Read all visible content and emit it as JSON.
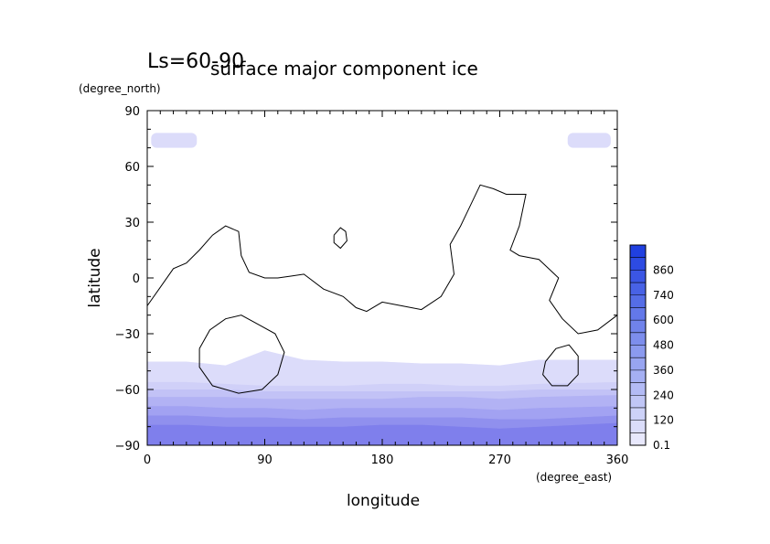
{
  "chart_data": {
    "type": "heatmap",
    "panel_label": "Ls=60-90",
    "title": "surface major component ice",
    "xlabel": "longitude",
    "xunit": "(degree_east)",
    "ylabel": "latitude",
    "yunit": "(degree_north)",
    "xlim": [
      0,
      360
    ],
    "ylim": [
      -90,
      90
    ],
    "xticks": [
      0,
      90,
      180,
      270,
      360
    ],
    "yticks": [
      90,
      60,
      30,
      0,
      -30,
      -60,
      -90
    ],
    "xtick_labels": [
      "0",
      "90",
      "180",
      "270",
      "360"
    ],
    "ytick_labels": [
      "90",
      "60",
      "30",
      "0",
      "−30",
      "−60",
      "−90"
    ],
    "colorbar": {
      "labels": [
        "0.1",
        "120",
        "240",
        "360",
        "480",
        "600",
        "740",
        "860"
      ],
      "levels": [
        0.1,
        60,
        120,
        180,
        240,
        300,
        360,
        420,
        480,
        540,
        600,
        670,
        740,
        800,
        860,
        920,
        980
      ],
      "color_low": "#e8e8fc",
      "color_high": "#2040e0"
    },
    "ice_fill": {
      "south_bands": [
        {
          "level": 0.1,
          "color": "#dcdcfa",
          "boundary_lat": [
            -45,
            -45,
            -47,
            -39,
            -44,
            -45,
            -45,
            -46,
            -46,
            -47,
            -44,
            -44
          ]
        },
        {
          "level": 60,
          "color": "#d0d0f8",
          "boundary_lat": [
            -56,
            -56,
            -57,
            -58,
            -58,
            -58,
            -57,
            -57,
            -58,
            -58,
            -57,
            -56
          ]
        },
        {
          "level": 120,
          "color": "#c2c2f6",
          "boundary_lat": [
            -60,
            -60,
            -60,
            -61,
            -61,
            -61,
            -61,
            -61,
            -61,
            -61,
            -60,
            -60
          ]
        },
        {
          "level": 180,
          "color": "#b2b2f4",
          "boundary_lat": [
            -64,
            -64,
            -64,
            -65,
            -65,
            -65,
            -65,
            -64,
            -64,
            -65,
            -64,
            -63
          ]
        },
        {
          "level": 240,
          "color": "#a2a2f2",
          "boundary_lat": [
            -69,
            -69,
            -70,
            -70,
            -71,
            -70,
            -70,
            -70,
            -70,
            -71,
            -70,
            -69
          ]
        },
        {
          "level": 300,
          "color": "#9090ee",
          "boundary_lat": [
            -74,
            -74,
            -75,
            -75,
            -76,
            -75,
            -75,
            -75,
            -75,
            -76,
            -76,
            -74
          ]
        },
        {
          "level": 360,
          "color": "#7f7fec",
          "boundary_lat": [
            -79,
            -79,
            -80,
            -80,
            -80,
            -80,
            -79,
            -79,
            -80,
            -81,
            -80,
            -78
          ]
        }
      ],
      "band_lons": [
        0,
        30,
        60,
        90,
        120,
        150,
        180,
        210,
        240,
        270,
        300,
        360
      ],
      "north_patches": [
        {
          "level": 0.1,
          "color": "#dcdcfa",
          "lon_range": [
            3,
            38
          ],
          "lat_range": [
            70,
            78
          ]
        },
        {
          "level": 0.1,
          "color": "#dcdcfa",
          "lon_range": [
            322,
            355
          ],
          "lat_range": [
            70,
            78
          ]
        }
      ]
    },
    "contours": [
      {
        "name": "main",
        "points": [
          [
            0,
            -15
          ],
          [
            10,
            -5
          ],
          [
            20,
            5
          ],
          [
            30,
            8
          ],
          [
            40,
            15
          ],
          [
            50,
            23
          ],
          [
            60,
            28
          ],
          [
            70,
            25
          ],
          [
            72,
            12
          ],
          [
            78,
            3
          ],
          [
            90,
            0
          ],
          [
            100,
            0
          ],
          [
            110,
            1
          ],
          [
            120,
            2
          ],
          [
            135,
            -6
          ],
          [
            150,
            -10
          ],
          [
            160,
            -16
          ],
          [
            168,
            -18
          ],
          [
            180,
            -13
          ],
          [
            195,
            -15
          ],
          [
            210,
            -17
          ],
          [
            225,
            -10
          ],
          [
            235,
            2
          ],
          [
            232,
            18
          ],
          [
            240,
            28
          ],
          [
            255,
            50
          ],
          [
            265,
            48
          ],
          [
            275,
            45
          ],
          [
            290,
            45
          ],
          [
            285,
            28
          ],
          [
            278,
            15
          ],
          [
            285,
            12
          ],
          [
            300,
            10
          ],
          [
            315,
            0
          ],
          [
            308,
            -12
          ],
          [
            318,
            -22
          ],
          [
            330,
            -30
          ],
          [
            345,
            -28
          ],
          [
            360,
            -20
          ]
        ]
      },
      {
        "name": "small-north",
        "points": [
          [
            143,
            23
          ],
          [
            148,
            27
          ],
          [
            152,
            25
          ],
          [
            153,
            20
          ],
          [
            148,
            16
          ],
          [
            143,
            19
          ],
          [
            143,
            23
          ]
        ]
      },
      {
        "name": "loop-sw",
        "points": [
          [
            40,
            -38
          ],
          [
            48,
            -28
          ],
          [
            60,
            -22
          ],
          [
            72,
            -20
          ],
          [
            85,
            -25
          ],
          [
            98,
            -30
          ],
          [
            105,
            -40
          ],
          [
            100,
            -52
          ],
          [
            88,
            -60
          ],
          [
            70,
            -62
          ],
          [
            50,
            -58
          ],
          [
            40,
            -48
          ],
          [
            40,
            -38
          ]
        ]
      },
      {
        "name": "loop-se",
        "points": [
          [
            305,
            -45
          ],
          [
            313,
            -38
          ],
          [
            323,
            -36
          ],
          [
            330,
            -42
          ],
          [
            330,
            -52
          ],
          [
            322,
            -58
          ],
          [
            310,
            -58
          ],
          [
            303,
            -52
          ],
          [
            305,
            -45
          ]
        ]
      }
    ]
  }
}
